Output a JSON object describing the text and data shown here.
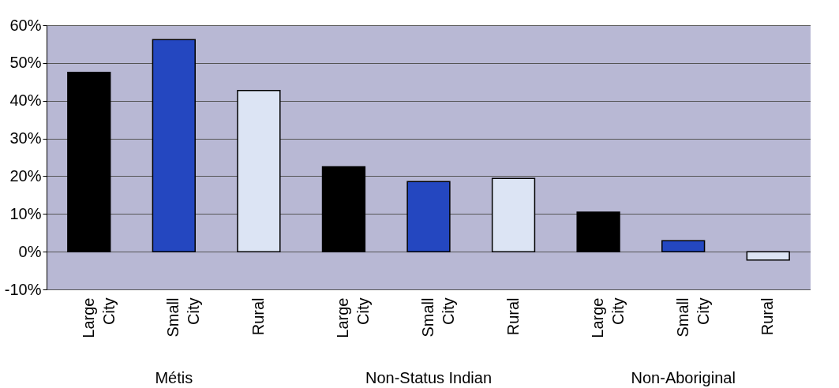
{
  "chart_data": {
    "type": "bar",
    "categories": [
      "Large City",
      "Small City",
      "Rural",
      "Large City",
      "Small City",
      "Rural",
      "Large City",
      "Small City",
      "Rural"
    ],
    "values": [
      47.5,
      56.2,
      42.7,
      22.5,
      18.6,
      19.4,
      10.5,
      2.9,
      -2.2
    ],
    "colors": [
      "#000000",
      "#2447c0",
      "#dce4f4",
      "#000000",
      "#2447c0",
      "#dce4f4",
      "#000000",
      "#2447c0",
      "#dce4f4"
    ],
    "ylim": [
      -10,
      60
    ],
    "yticks": [
      {
        "value": -10,
        "label": "-10%"
      },
      {
        "value": 0,
        "label": "0%"
      },
      {
        "value": 10,
        "label": "10%"
      },
      {
        "value": 20,
        "label": "20%"
      },
      {
        "value": 30,
        "label": "30%"
      },
      {
        "value": 40,
        "label": "40%"
      },
      {
        "value": 50,
        "label": "50%"
      },
      {
        "value": 60,
        "label": "60%"
      }
    ],
    "grid": true,
    "annotations": [
      "Métis",
      "Non-Status Indian",
      "Non-Aboriginal"
    ]
  }
}
